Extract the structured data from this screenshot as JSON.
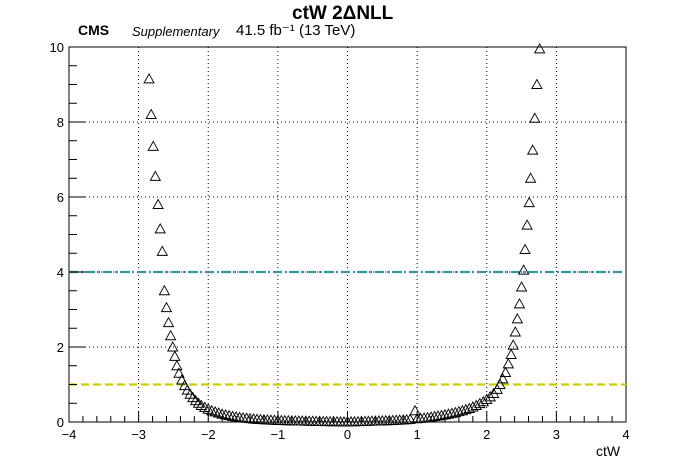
{
  "header": {
    "experiment": "CMS",
    "tag": "Supplementary",
    "lumi": "41.5 fb⁻¹ (13 TeV)"
  },
  "chart_data": {
    "type": "scatter",
    "title": "ctW 2ΔNLL",
    "xlabel": "ctW",
    "ylabel": "",
    "xlim": [
      -4,
      4
    ],
    "ylim": [
      0,
      10
    ],
    "x_ticks": [
      "−4",
      "−3",
      "−2",
      "−1",
      "0",
      "1",
      "2",
      "3",
      "4"
    ],
    "y_ticks": [
      "0",
      "2",
      "4",
      "6",
      "8",
      "10"
    ],
    "grid": true,
    "marker": "open-triangle",
    "marker_color": "#000000",
    "points": [
      [
        -2.85,
        9.15
      ],
      [
        -2.82,
        8.2
      ],
      [
        -2.79,
        7.35
      ],
      [
        -2.76,
        6.55
      ],
      [
        -2.72,
        5.8
      ],
      [
        -2.69,
        5.15
      ],
      [
        -2.66,
        4.55
      ],
      [
        -2.63,
        3.5
      ],
      [
        -2.6,
        3.05
      ],
      [
        -2.57,
        2.65
      ],
      [
        -2.54,
        2.3
      ],
      [
        -2.51,
        2.0
      ],
      [
        -2.48,
        1.75
      ],
      [
        -2.45,
        1.5
      ],
      [
        -2.42,
        1.3
      ],
      [
        -2.38,
        1.12
      ],
      [
        -2.34,
        0.97
      ],
      [
        -2.3,
        0.85
      ],
      [
        -2.26,
        0.74
      ],
      [
        -2.22,
        0.65
      ],
      [
        -2.18,
        0.57
      ],
      [
        -2.14,
        0.5
      ],
      [
        -2.1,
        0.44
      ],
      [
        -2.05,
        0.39
      ],
      [
        -2.0,
        0.34
      ],
      [
        -1.95,
        0.3
      ],
      [
        -1.9,
        0.27
      ],
      [
        -1.85,
        0.24
      ],
      [
        -1.8,
        0.21
      ],
      [
        -1.75,
        0.19
      ],
      [
        -1.7,
        0.17
      ],
      [
        -1.65,
        0.15
      ],
      [
        -1.6,
        0.135
      ],
      [
        -1.55,
        0.12
      ],
      [
        -1.5,
        0.11
      ],
      [
        -1.45,
        0.1
      ],
      [
        -1.4,
        0.09
      ],
      [
        -1.35,
        0.08
      ],
      [
        -1.3,
        0.07
      ],
      [
        -1.25,
        0.065
      ],
      [
        -1.2,
        0.06
      ],
      [
        -1.15,
        0.055
      ],
      [
        -1.1,
        0.05
      ],
      [
        -1.05,
        0.045
      ],
      [
        -1.0,
        0.04
      ],
      [
        -0.95,
        0.038
      ],
      [
        -0.9,
        0.035
      ],
      [
        -0.85,
        0.032
      ],
      [
        -0.8,
        0.03
      ],
      [
        -0.75,
        0.028
      ],
      [
        -0.7,
        0.026
      ],
      [
        -0.65,
        0.024
      ],
      [
        -0.6,
        0.022
      ],
      [
        -0.55,
        0.02
      ],
      [
        -0.5,
        0.018
      ],
      [
        -0.45,
        0.016
      ],
      [
        -0.4,
        0.014
      ],
      [
        -0.35,
        0.012
      ],
      [
        -0.3,
        0.01
      ],
      [
        -0.25,
        0.008
      ],
      [
        -0.2,
        0.006
      ],
      [
        -0.15,
        0.005
      ],
      [
        -0.1,
        0.004
      ],
      [
        -0.05,
        0.003
      ],
      [
        0.0,
        0.003
      ],
      [
        0.05,
        0.004
      ],
      [
        0.1,
        0.006
      ],
      [
        0.15,
        0.009
      ],
      [
        0.2,
        0.012
      ],
      [
        0.25,
        0.015
      ],
      [
        0.3,
        0.018
      ],
      [
        0.35,
        0.021
      ],
      [
        0.4,
        0.024
      ],
      [
        0.45,
        0.027
      ],
      [
        0.5,
        0.03
      ],
      [
        0.55,
        0.033
      ],
      [
        0.6,
        0.036
      ],
      [
        0.65,
        0.04
      ],
      [
        0.7,
        0.045
      ],
      [
        0.75,
        0.05
      ],
      [
        0.8,
        0.055
      ],
      [
        0.85,
        0.06
      ],
      [
        0.9,
        0.068
      ],
      [
        0.97,
        0.3
      ],
      [
        1.0,
        0.085
      ],
      [
        1.05,
        0.095
      ],
      [
        1.1,
        0.105
      ],
      [
        1.15,
        0.115
      ],
      [
        1.2,
        0.13
      ],
      [
        1.25,
        0.145
      ],
      [
        1.3,
        0.16
      ],
      [
        1.35,
        0.175
      ],
      [
        1.4,
        0.19
      ],
      [
        1.45,
        0.21
      ],
      [
        1.5,
        0.23
      ],
      [
        1.55,
        0.25
      ],
      [
        1.6,
        0.275
      ],
      [
        1.65,
        0.3
      ],
      [
        1.7,
        0.33
      ],
      [
        1.75,
        0.36
      ],
      [
        1.8,
        0.4
      ],
      [
        1.85,
        0.44
      ],
      [
        1.9,
        0.49
      ],
      [
        1.95,
        0.54
      ],
      [
        2.0,
        0.6
      ],
      [
        2.05,
        0.67
      ],
      [
        2.1,
        0.76
      ],
      [
        2.15,
        0.87
      ],
      [
        2.19,
        1.0
      ],
      [
        2.23,
        1.15
      ],
      [
        2.27,
        1.32
      ],
      [
        2.31,
        1.55
      ],
      [
        2.35,
        1.8
      ],
      [
        2.38,
        2.05
      ],
      [
        2.41,
        2.4
      ],
      [
        2.44,
        2.75
      ],
      [
        2.47,
        3.15
      ],
      [
        2.5,
        3.6
      ],
      [
        2.53,
        4.05
      ],
      [
        2.55,
        4.6
      ],
      [
        2.58,
        5.25
      ],
      [
        2.61,
        5.85
      ],
      [
        2.63,
        6.5
      ],
      [
        2.66,
        7.25
      ],
      [
        2.69,
        8.1
      ],
      [
        2.72,
        9.0
      ],
      [
        2.76,
        9.95
      ]
    ],
    "reference_lines": [
      {
        "y": 1.0,
        "color": "#cccc00",
        "style": "dashed"
      },
      {
        "y": 4.0,
        "color": "#339999",
        "style": "dash-dot"
      }
    ]
  }
}
